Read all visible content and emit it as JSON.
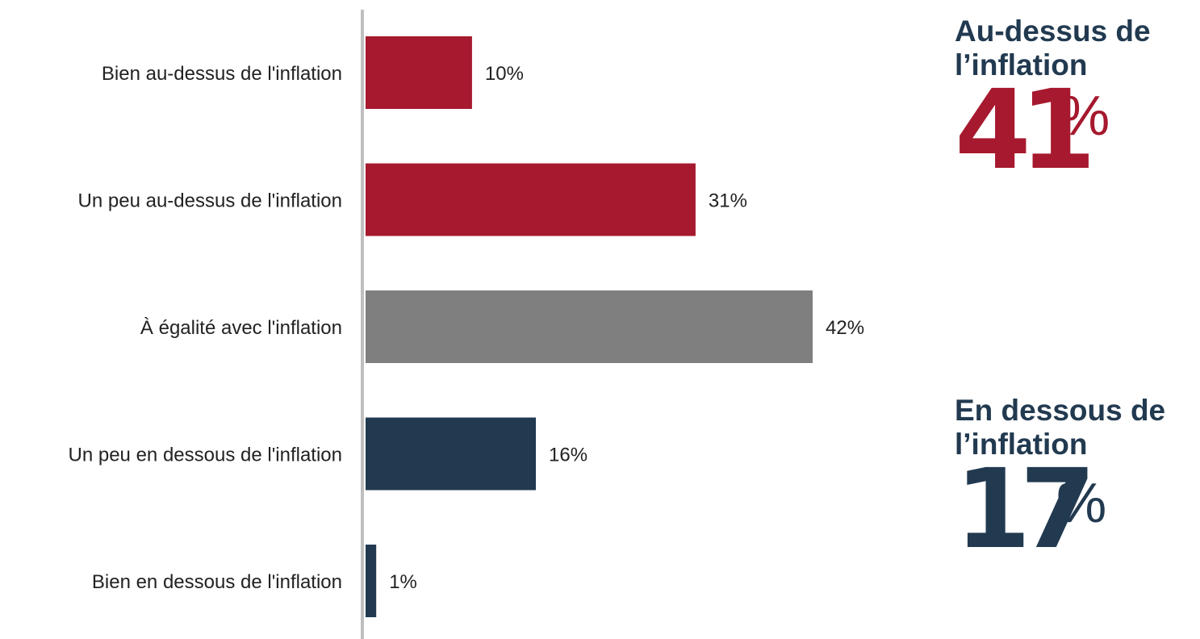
{
  "chart_data": {
    "type": "bar",
    "orientation": "horizontal",
    "categories": [
      "Bien au-dessus de l'inflation",
      "Un peu au-dessus de l'inflation",
      "À égalité avec l'inflation",
      "Un peu en dessous de l'inflation",
      "Bien en dessous de l'inflation"
    ],
    "values": [
      10,
      31,
      42,
      16,
      1
    ],
    "value_labels": [
      "10%",
      "31%",
      "42%",
      "16%",
      "1%"
    ],
    "bar_colors": [
      "#a6192e",
      "#a6192e",
      "#7f7f7f",
      "#223a50",
      "#223a50"
    ],
    "xlim": [
      0,
      42
    ],
    "grid": false,
    "axis_color": "#bfbfbf"
  },
  "summary": {
    "above": {
      "heading_line1": "Au-dessus de",
      "heading_line2": "l’inflation",
      "number": "41",
      "percent_sign": "%",
      "color": "#a6192e"
    },
    "below": {
      "heading_line1": "En dessous de",
      "heading_line2": "l’inflation",
      "number": "17",
      "percent_sign": "%",
      "color": "#223a50"
    }
  }
}
